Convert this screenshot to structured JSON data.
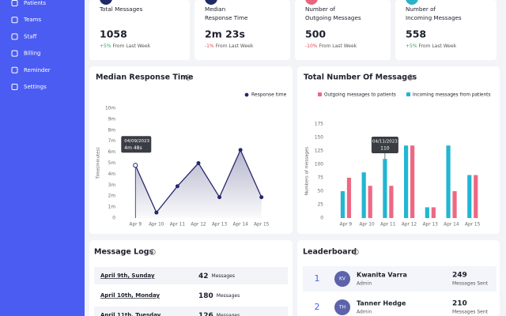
{
  "sidebar": {
    "items": [
      "Patients",
      "Teams",
      "Staff",
      "Billing",
      "Reminder",
      "Settings"
    ]
  },
  "stats": [
    {
      "title_lines": [
        "Total Messages"
      ],
      "value": "1058",
      "change": "+5%",
      "note": "From Last Week"
    },
    {
      "title_lines": [
        "Median",
        "Response Time"
      ],
      "value": "2m 23s",
      "change": "-1%",
      "note": "From Last Week"
    },
    {
      "title_lines": [
        "Number of",
        "Outgoing Messages"
      ],
      "value": "500",
      "change": "-10%",
      "note": "From Last Week"
    },
    {
      "title_lines": [
        "Number of",
        "Incoming Messages"
      ],
      "value": "558",
      "change": "+5%",
      "note": "From Last Week"
    }
  ],
  "response_chart": {
    "type": "line",
    "title": "Median Response Time",
    "y_label": "Time(minutes)",
    "categories": [
      "Apr 9",
      "Apr 10",
      "Apr 11",
      "Apr 12",
      "Apr 13",
      "Apr 14",
      "Apr 15"
    ],
    "series": [
      {
        "name": "Response time",
        "color": "#26286b",
        "values": [
          4.8,
          0.5,
          2.9,
          5.0,
          1.9,
          6.2,
          1.9
        ]
      }
    ],
    "ylim": [
      0,
      10
    ],
    "yticks": [
      0,
      {
        "value": 1,
        "label": "1m"
      },
      {
        "value": 2,
        "label": "2m"
      },
      {
        "value": 3,
        "label": "3m"
      },
      {
        "value": 4,
        "label": "4m"
      },
      {
        "value": 5,
        "label": "5m"
      },
      {
        "value": 6,
        "label": "6m"
      },
      {
        "value": 7,
        "label": "7m"
      },
      {
        "value": 8,
        "label": "8m"
      },
      {
        "value": 9,
        "label": "9m"
      },
      {
        "value": 10,
        "label": "10m"
      }
    ],
    "tooltip": {
      "title": "04/09/2023",
      "text": "4m 48s"
    }
  },
  "messages_chart": {
    "type": "bar",
    "title": "Total Number Of Messages",
    "y_label": "Numbers of messages",
    "categories": [
      "Apr 9",
      "Apr 10",
      "Apr 11",
      "Apr 12",
      "Apr 13",
      "Apr 14",
      "Apr 15"
    ],
    "series": [
      {
        "name": "Outgoing messages to patients",
        "color": "#ee6883",
        "values": [
          75,
          60,
          60,
          135,
          20,
          50,
          80
        ]
      },
      {
        "name": "Incoming messages from patients",
        "color": "#22b6d2",
        "values": [
          50,
          85,
          110,
          135,
          20,
          135,
          80
        ]
      }
    ],
    "ylim": [
      0,
      175
    ],
    "yticks": [
      0,
      25,
      50,
      75,
      100,
      125,
      150,
      175
    ],
    "tooltip": {
      "title": "04/11/2023",
      "text": "110"
    }
  },
  "message_logs": {
    "title": "Message Logs",
    "rows": [
      {
        "date": "April 9th, Sunday",
        "count": 42,
        "unit": "Messages"
      },
      {
        "date": "April 10th, Monday",
        "count": 180,
        "unit": "Messages"
      },
      {
        "date": "April 11th, Tuesday",
        "count": 126,
        "unit": "Messages"
      }
    ]
  },
  "leaderboard": {
    "title": "Leaderboard",
    "rows": [
      {
        "rank": 1,
        "initials": "KV",
        "name": "Kwanita Varra",
        "role": "Admin",
        "value": 249,
        "unit": "Messages Sent"
      },
      {
        "rank": 2,
        "initials": "TH",
        "name": "Tanner Hedge",
        "role": "Admin",
        "value": 210,
        "unit": "Messages Sent"
      }
    ]
  }
}
